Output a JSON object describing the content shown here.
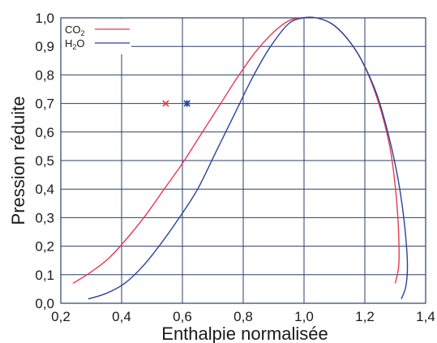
{
  "chart_data": {
    "type": "line",
    "title": "",
    "xlabel": "Enthalpie normalisée",
    "ylabel": "Pression réduite",
    "xlim": [
      0.2,
      1.4
    ],
    "ylim": [
      0.0,
      1.0
    ],
    "grid": true,
    "legend_position": "top-left",
    "x_ticks": [
      "0,2",
      "0,4",
      "0,6",
      "0,8",
      "1,0",
      "1,2",
      "1,4"
    ],
    "y_ticks": [
      "0,0",
      "0,1",
      "0,2",
      "0,3",
      "0,4",
      "0,5",
      "0,6",
      "0,7",
      "0,8",
      "0,9",
      "1,0"
    ],
    "series": [
      {
        "name": "CO2",
        "legend_base": "CO",
        "legend_sub": "2",
        "color": "#e8384f",
        "points": [
          [
            0.24,
            0.07
          ],
          [
            0.3,
            0.11
          ],
          [
            0.36,
            0.16
          ],
          [
            0.42,
            0.23
          ],
          [
            0.48,
            0.31
          ],
          [
            0.54,
            0.4
          ],
          [
            0.6,
            0.49
          ],
          [
            0.66,
            0.59
          ],
          [
            0.72,
            0.69
          ],
          [
            0.78,
            0.79
          ],
          [
            0.84,
            0.88
          ],
          [
            0.9,
            0.95
          ],
          [
            0.95,
            0.99
          ],
          [
            0.99,
            1.0
          ],
          [
            1.04,
            1.0
          ],
          [
            1.09,
            0.98
          ],
          [
            1.14,
            0.93
          ],
          [
            1.19,
            0.85
          ],
          [
            1.24,
            0.72
          ],
          [
            1.28,
            0.56
          ],
          [
            1.3,
            0.41
          ],
          [
            1.31,
            0.27
          ],
          [
            1.312,
            0.14
          ],
          [
            1.3,
            0.07
          ]
        ]
      },
      {
        "name": "H2O",
        "legend_base": "H",
        "legend_sub": "2",
        "legend_tail": "O",
        "color": "#27449b",
        "points": [
          [
            0.29,
            0.015
          ],
          [
            0.35,
            0.035
          ],
          [
            0.41,
            0.07
          ],
          [
            0.47,
            0.13
          ],
          [
            0.53,
            0.21
          ],
          [
            0.59,
            0.3
          ],
          [
            0.65,
            0.4
          ],
          [
            0.71,
            0.53
          ],
          [
            0.77,
            0.66
          ],
          [
            0.83,
            0.79
          ],
          [
            0.89,
            0.9
          ],
          [
            0.95,
            0.98
          ],
          [
            1.0,
            1.0
          ],
          [
            1.04,
            1.0
          ],
          [
            1.09,
            0.98
          ],
          [
            1.14,
            0.93
          ],
          [
            1.19,
            0.85
          ],
          [
            1.24,
            0.73
          ],
          [
            1.28,
            0.58
          ],
          [
            1.31,
            0.43
          ],
          [
            1.33,
            0.28
          ],
          [
            1.34,
            0.14
          ],
          [
            1.335,
            0.06
          ],
          [
            1.32,
            0.015
          ]
        ]
      }
    ],
    "markers": [
      {
        "series": "CO2",
        "symbol": "x",
        "x": 0.545,
        "y": 0.7,
        "color": "#e8384f"
      },
      {
        "series": "H2O",
        "symbol": "asterisk",
        "x": 0.615,
        "y": 0.7,
        "color": "#27449b"
      }
    ]
  }
}
